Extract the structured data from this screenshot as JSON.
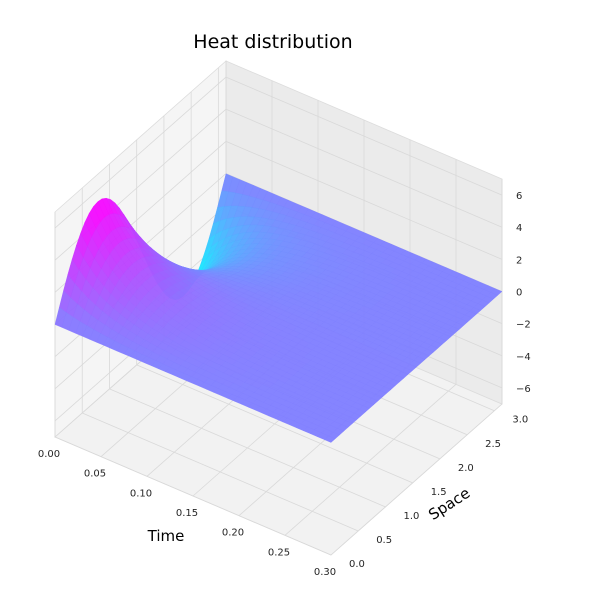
{
  "chart_data": {
    "type": "surface3d",
    "title": "Heat distribution",
    "xlabel": "Time",
    "ylabel": "Space",
    "zlabel": "",
    "colormap": "cool",
    "colormap_stops": [
      "#00ffff",
      "#ff00ff"
    ],
    "xlim": [
      0.0,
      0.3
    ],
    "ylim": [
      0.0,
      3.14
    ],
    "zlim": [
      -7,
      7
    ],
    "xticks": [
      "0.00",
      "0.05",
      "0.10",
      "0.15",
      "0.20",
      "0.25",
      "0.30"
    ],
    "yticks": [
      "0.0",
      "0.5",
      "1.0",
      "1.5",
      "2.0",
      "2.5",
      "3.0"
    ],
    "zticks": [
      "−6",
      "−4",
      "−2",
      "0",
      "2",
      "4",
      "6"
    ],
    "grid": true,
    "surface": {
      "function": "u(t,x) = 5.3·sin(2x)·exp(−22t)",
      "peak_value": 5.3,
      "x_range": [
        0.0,
        0.3
      ],
      "y_range": [
        0.0,
        3.14
      ]
    }
  }
}
